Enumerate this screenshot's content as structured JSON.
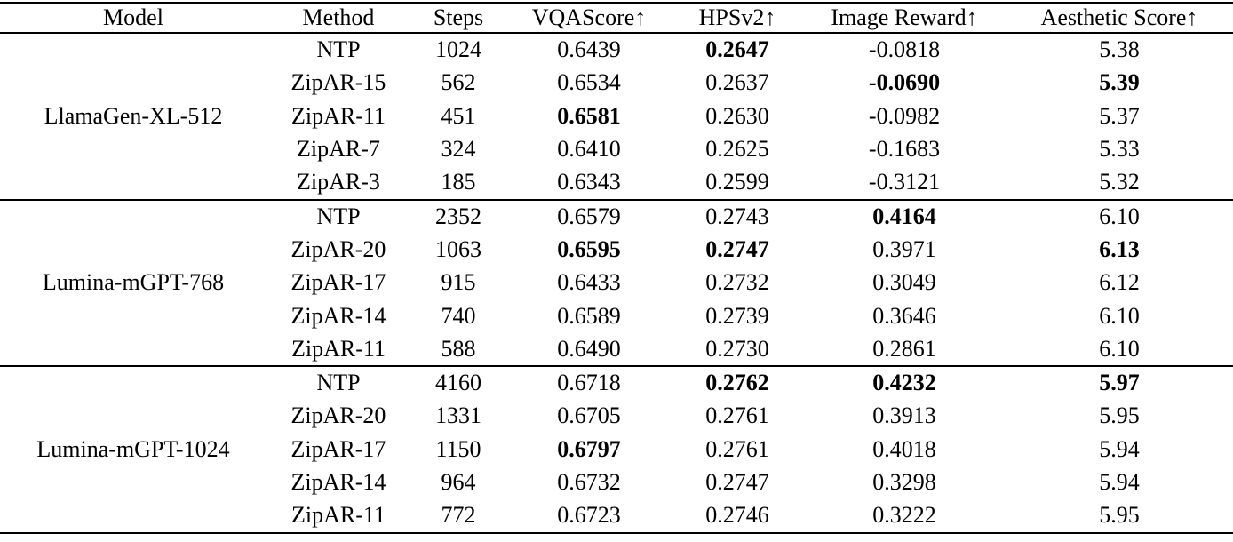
{
  "table": {
    "columns": [
      "Model",
      "Method",
      "Steps",
      "VQAScore↑",
      "HPSv2↑",
      "Image Reward↑",
      "Aesthetic Score↑"
    ],
    "groups": [
      {
        "model": "LlamaGen-XL-512",
        "rows": [
          {
            "cells": [
              "NTP",
              "1024",
              "0.6439",
              "0.2647",
              "-0.0818",
              "5.38"
            ],
            "bold": [
              0,
              0,
              0,
              1,
              0,
              0
            ]
          },
          {
            "cells": [
              "ZipAR-15",
              "562",
              "0.6534",
              "0.2637",
              "-0.0690",
              "5.39"
            ],
            "bold": [
              0,
              0,
              0,
              0,
              1,
              1
            ]
          },
          {
            "cells": [
              "ZipAR-11",
              "451",
              "0.6581",
              "0.2630",
              "-0.0982",
              "5.37"
            ],
            "bold": [
              0,
              0,
              1,
              0,
              0,
              0
            ]
          },
          {
            "cells": [
              "ZipAR-7",
              "324",
              "0.6410",
              "0.2625",
              "-0.1683",
              "5.33"
            ],
            "bold": [
              0,
              0,
              0,
              0,
              0,
              0
            ]
          },
          {
            "cells": [
              "ZipAR-3",
              "185",
              "0.6343",
              "0.2599",
              "-0.3121",
              "5.32"
            ],
            "bold": [
              0,
              0,
              0,
              0,
              0,
              0
            ]
          }
        ]
      },
      {
        "model": "Lumina-mGPT-768",
        "rows": [
          {
            "cells": [
              "NTP",
              "2352",
              "0.6579",
              "0.2743",
              "0.4164",
              "6.10"
            ],
            "bold": [
              0,
              0,
              0,
              0,
              1,
              0
            ]
          },
          {
            "cells": [
              "ZipAR-20",
              "1063",
              "0.6595",
              "0.2747",
              "0.3971",
              "6.13"
            ],
            "bold": [
              0,
              0,
              1,
              1,
              0,
              1
            ]
          },
          {
            "cells": [
              "ZipAR-17",
              "915",
              "0.6433",
              "0.2732",
              "0.3049",
              "6.12"
            ],
            "bold": [
              0,
              0,
              0,
              0,
              0,
              0
            ]
          },
          {
            "cells": [
              "ZipAR-14",
              "740",
              "0.6589",
              "0.2739",
              "0.3646",
              "6.10"
            ],
            "bold": [
              0,
              0,
              0,
              0,
              0,
              0
            ]
          },
          {
            "cells": [
              "ZipAR-11",
              "588",
              "0.6490",
              "0.2730",
              "0.2861",
              "6.10"
            ],
            "bold": [
              0,
              0,
              0,
              0,
              0,
              0
            ]
          }
        ]
      },
      {
        "model": "Lumina-mGPT-1024",
        "rows": [
          {
            "cells": [
              "NTP",
              "4160",
              "0.6718",
              "0.2762",
              "0.4232",
              "5.97"
            ],
            "bold": [
              0,
              0,
              0,
              1,
              1,
              1
            ]
          },
          {
            "cells": [
              "ZipAR-20",
              "1331",
              "0.6705",
              "0.2761",
              "0.3913",
              "5.95"
            ],
            "bold": [
              0,
              0,
              0,
              0,
              0,
              0
            ]
          },
          {
            "cells": [
              "ZipAR-17",
              "1150",
              "0.6797",
              "0.2761",
              "0.4018",
              "5.94"
            ],
            "bold": [
              0,
              0,
              1,
              0,
              0,
              0
            ]
          },
          {
            "cells": [
              "ZipAR-14",
              "964",
              "0.6732",
              "0.2747",
              "0.3298",
              "5.94"
            ],
            "bold": [
              0,
              0,
              0,
              0,
              0,
              0
            ]
          },
          {
            "cells": [
              "ZipAR-11",
              "772",
              "0.6723",
              "0.2746",
              "0.3222",
              "5.95"
            ],
            "bold": [
              0,
              0,
              0,
              0,
              0,
              0
            ]
          }
        ]
      }
    ]
  },
  "chart_data": {
    "type": "table",
    "columns": [
      "Model",
      "Method",
      "Steps",
      "VQAScore↑",
      "HPSv2↑",
      "Image Reward↑",
      "Aesthetic Score↑"
    ],
    "rows": [
      [
        "LlamaGen-XL-512",
        "NTP",
        1024,
        0.6439,
        0.2647,
        -0.0818,
        5.38
      ],
      [
        "LlamaGen-XL-512",
        "ZipAR-15",
        562,
        0.6534,
        0.2637,
        -0.069,
        5.39
      ],
      [
        "LlamaGen-XL-512",
        "ZipAR-11",
        451,
        0.6581,
        0.263,
        -0.0982,
        5.37
      ],
      [
        "LlamaGen-XL-512",
        "ZipAR-7",
        324,
        0.641,
        0.2625,
        -0.1683,
        5.33
      ],
      [
        "LlamaGen-XL-512",
        "ZipAR-3",
        185,
        0.6343,
        0.2599,
        -0.3121,
        5.32
      ],
      [
        "Lumina-mGPT-768",
        "NTP",
        2352,
        0.6579,
        0.2743,
        0.4164,
        6.1
      ],
      [
        "Lumina-mGPT-768",
        "ZipAR-20",
        1063,
        0.6595,
        0.2747,
        0.3971,
        6.13
      ],
      [
        "Lumina-mGPT-768",
        "ZipAR-17",
        915,
        0.6433,
        0.2732,
        0.3049,
        6.12
      ],
      [
        "Lumina-mGPT-768",
        "ZipAR-14",
        740,
        0.6589,
        0.2739,
        0.3646,
        6.1
      ],
      [
        "Lumina-mGPT-768",
        "ZipAR-11",
        588,
        0.649,
        0.273,
        0.2861,
        6.1
      ],
      [
        "Lumina-mGPT-1024",
        "NTP",
        4160,
        0.6718,
        0.2762,
        0.4232,
        5.97
      ],
      [
        "Lumina-mGPT-1024",
        "ZipAR-20",
        1331,
        0.6705,
        0.2761,
        0.3913,
        5.95
      ],
      [
        "Lumina-mGPT-1024",
        "ZipAR-17",
        1150,
        0.6797,
        0.2761,
        0.4018,
        5.94
      ],
      [
        "Lumina-mGPT-1024",
        "ZipAR-14",
        964,
        0.6732,
        0.2747,
        0.3298,
        5.94
      ],
      [
        "Lumina-mGPT-1024",
        "ZipAR-11",
        772,
        0.6723,
        0.2746,
        0.3222,
        5.95
      ]
    ]
  }
}
